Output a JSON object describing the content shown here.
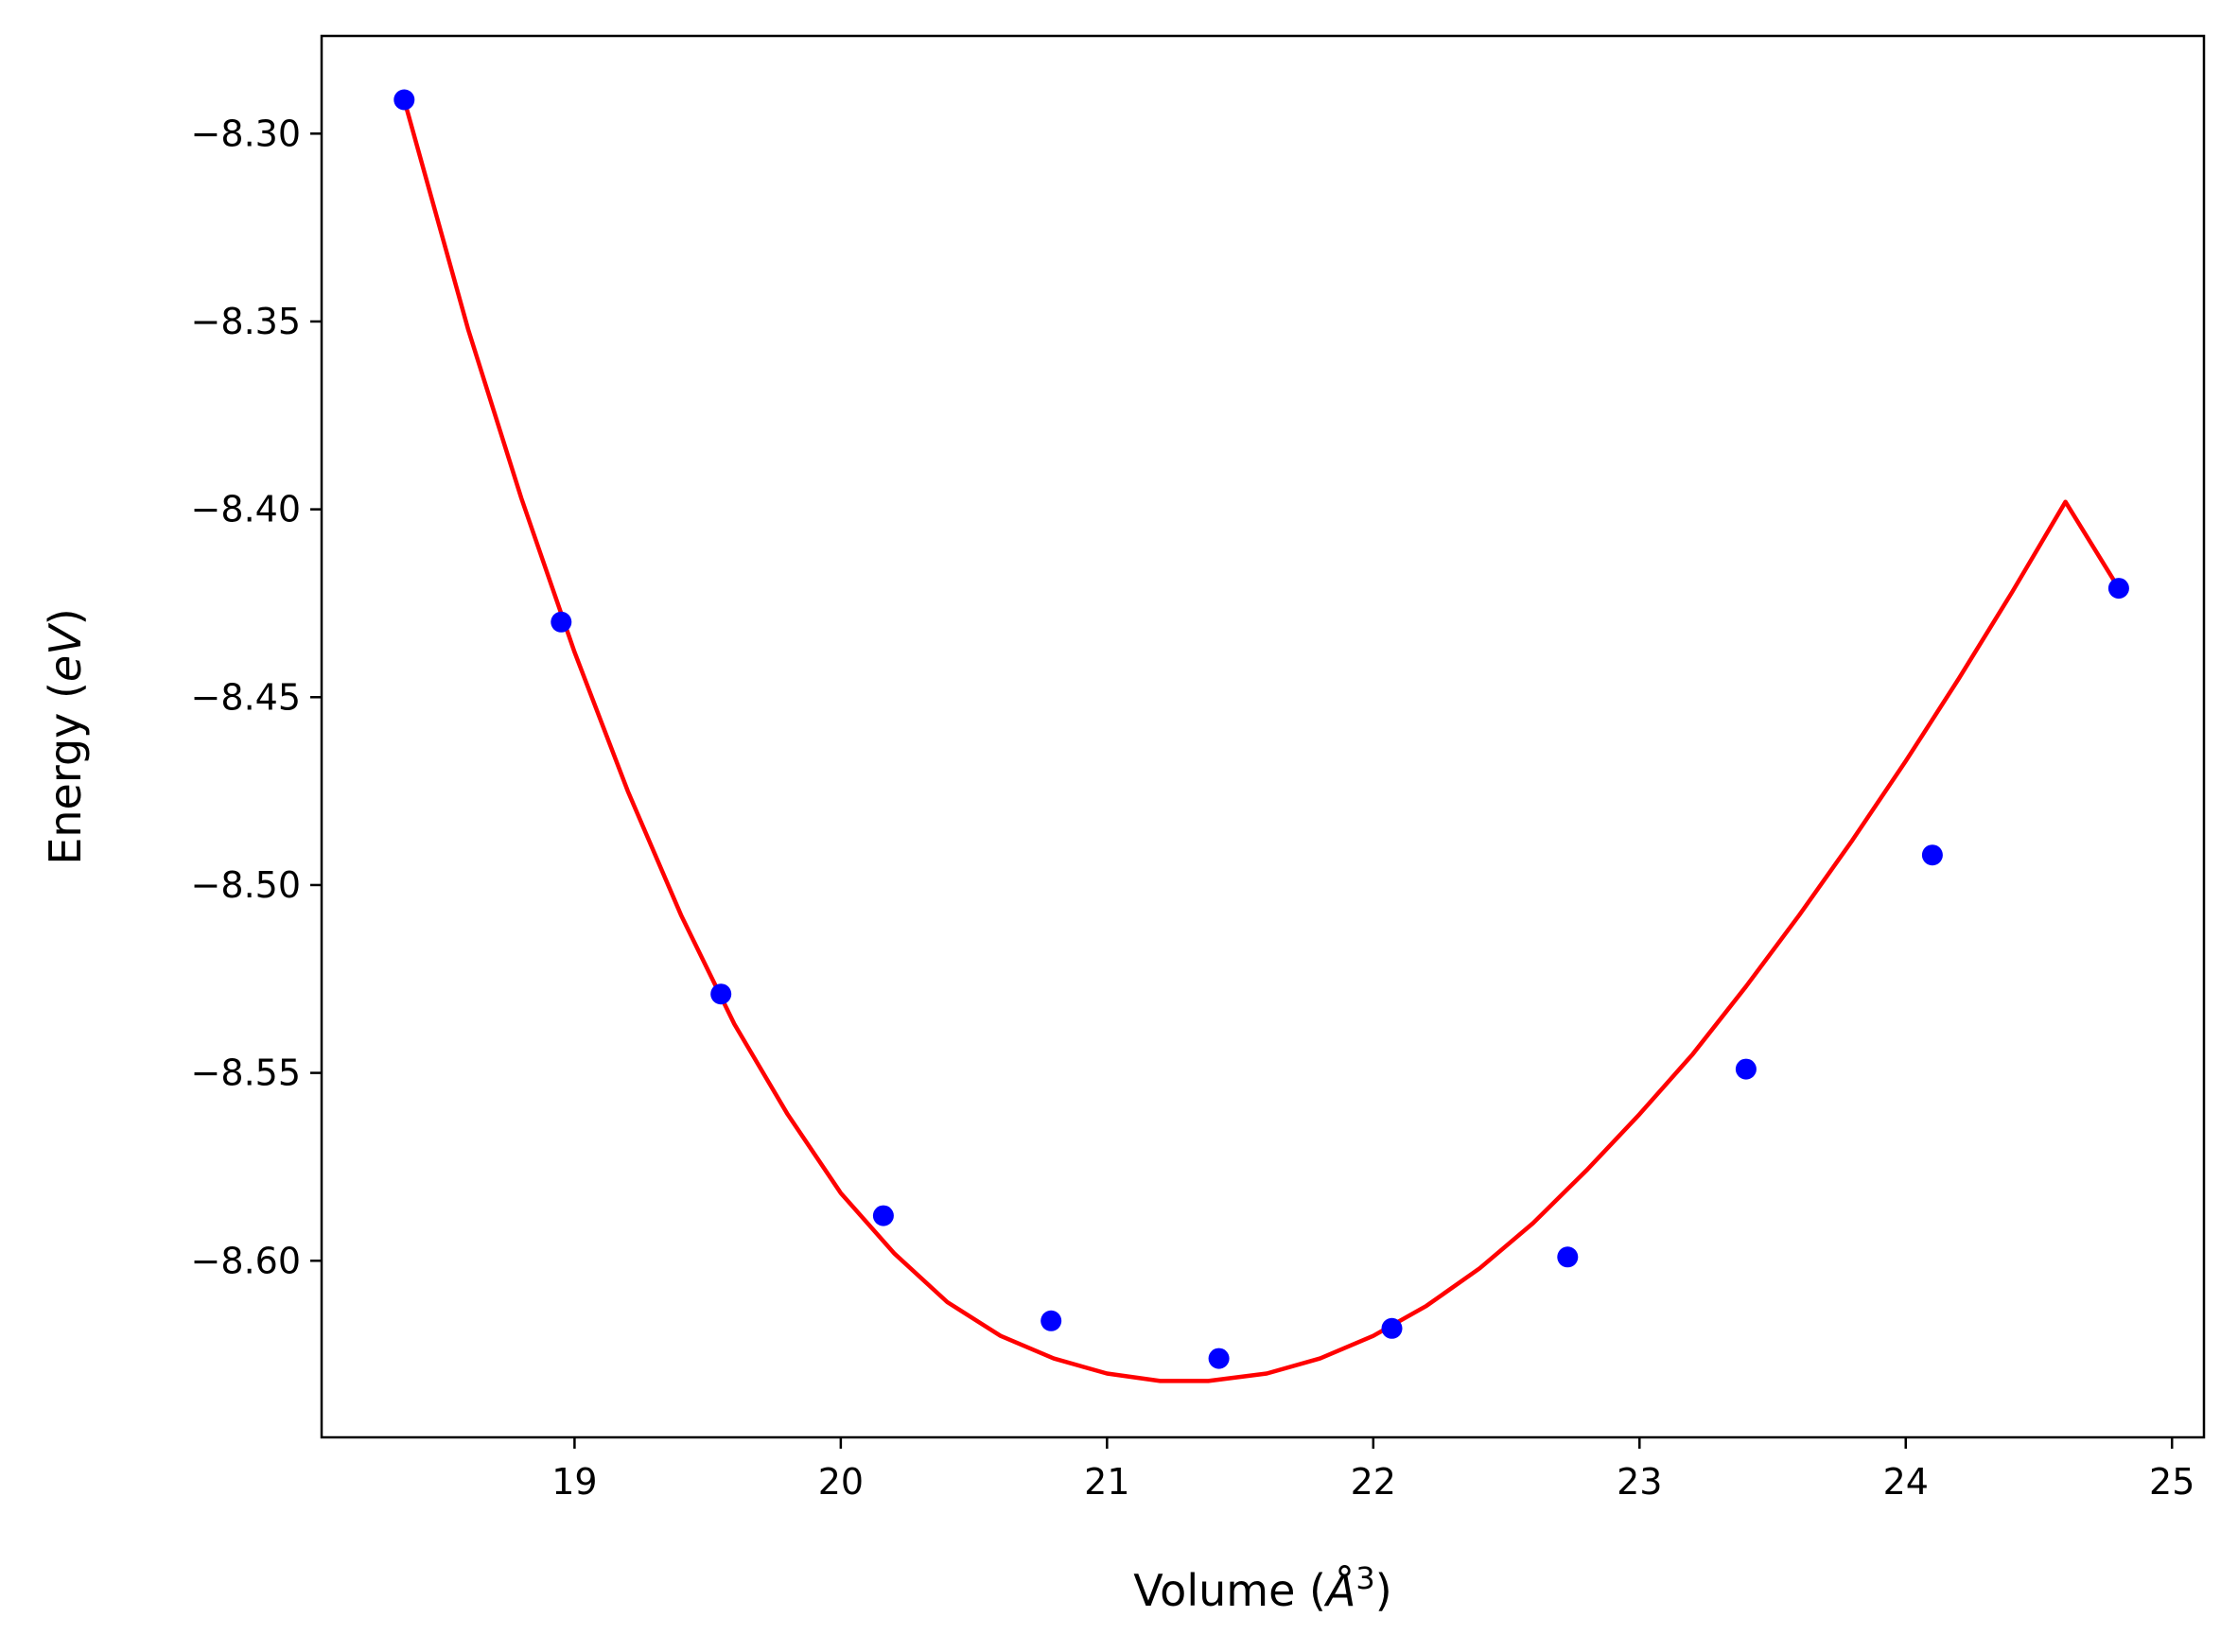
{
  "chart_data": {
    "type": "scatter",
    "title": "",
    "xlabel": "Volume (Å³)",
    "ylabel": "Energy (eV)",
    "xlabel_parts": {
      "prefix": "Volume (",
      "unit_base": "Å",
      "unit_exp": "3",
      "suffix": ")"
    },
    "ylabel_parts": {
      "prefix": "Energy (",
      "unit": "eV",
      "suffix": ")"
    },
    "xlim": [
      18.05,
      25.12
    ],
    "ylim": [
      -8.647,
      -8.274
    ],
    "x_ticks": [
      19,
      20,
      21,
      22,
      23,
      24,
      25
    ],
    "x_tick_labels": [
      "19",
      "20",
      "21",
      "22",
      "23",
      "24",
      "25"
    ],
    "y_ticks": [
      -8.3,
      -8.35,
      -8.4,
      -8.45,
      -8.5,
      -8.55,
      -8.6
    ],
    "y_tick_labels": [
      "−8.30",
      "−8.35",
      "−8.40",
      "−8.45",
      "−8.50",
      "−8.55",
      "−8.60"
    ],
    "grid": false,
    "legend": "none",
    "series": [
      {
        "kind": "points",
        "color": "#0000ff",
        "x": [
          18.36,
          18.95,
          19.55,
          20.16,
          20.79,
          21.42,
          22.07,
          22.73,
          23.4,
          24.1,
          24.8
        ],
        "y": [
          -8.291,
          -8.43,
          -8.529,
          -8.588,
          -8.616,
          -8.626,
          -8.618,
          -8.599,
          -8.549,
          -8.492,
          -8.421
        ]
      },
      {
        "kind": "fit-curve",
        "color": "#ff0000",
        "x": [
          18.36,
          18.6,
          18.8,
          19.0,
          19.2,
          19.4,
          19.6,
          19.8,
          20.0,
          20.2,
          20.4,
          20.6,
          20.8,
          21.0,
          21.2,
          21.38,
          21.6,
          21.8,
          22.0,
          22.2,
          22.4,
          22.6,
          22.8,
          23.0,
          23.2,
          23.4,
          23.6,
          23.8,
          24.0,
          24.2,
          24.4,
          24.6,
          24.8
        ],
        "y": [
          -8.291,
          -8.352,
          -8.397,
          -8.438,
          -8.475,
          -8.508,
          -8.537,
          -8.561,
          -8.582,
          -8.598,
          -8.611,
          -8.62,
          -8.626,
          -8.63,
          -8.632,
          -8.632,
          -8.63,
          -8.626,
          -8.62,
          -8.612,
          -8.602,
          -8.59,
          -8.576,
          -8.561,
          -8.545,
          -8.527,
          -8.508,
          -8.488,
          -8.467,
          -8.445,
          -8.422,
          -8.398,
          -8.421
        ]
      }
    ]
  }
}
